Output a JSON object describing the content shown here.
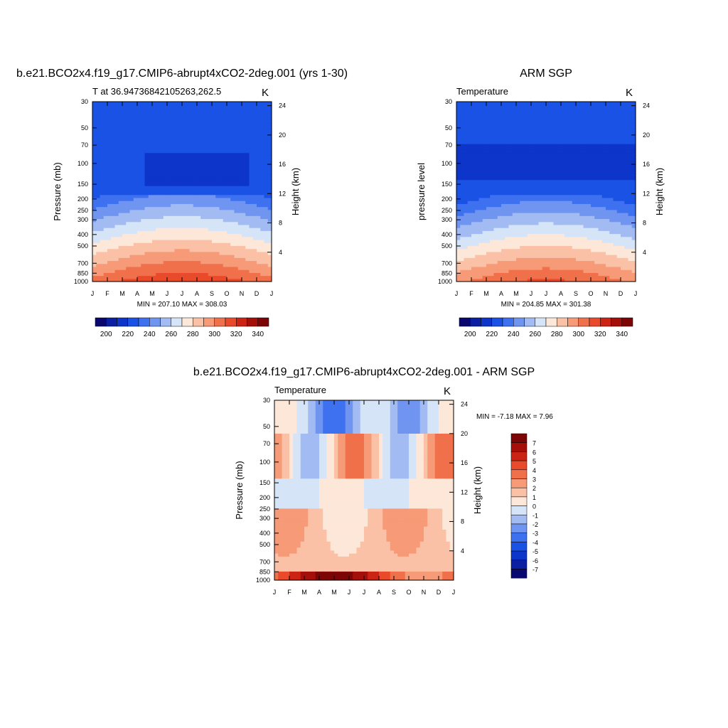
{
  "page": {
    "panel1_title": "b.e21.BCO2x4.f19_g17.CMIP6-abrupt4xCO2-2deg.001 (yrs 1-30)",
    "panel2_title": "ARM SGP",
    "panel3_title": "b.e21.BCO2x4.f19_g17.CMIP6-abrupt4xCO2-2deg.001 - ARM SGP"
  },
  "chart_data": [
    {
      "type": "heatmap",
      "title": "b.e21.BCO2x4.f19_g17.CMIP6-abrupt4xCO2-2deg.001 (yrs 1-30)",
      "left_string": "T at 36.94736842105263,262.5",
      "right_string": "K",
      "xlabel": "",
      "ylabel": "Pressure (mb)",
      "ylabel_right": "Height (km)",
      "x_ticklabels": [
        "J",
        "F",
        "M",
        "A",
        "M",
        "J",
        "J",
        "A",
        "S",
        "O",
        "N",
        "D",
        "J"
      ],
      "y_levels": [
        1000,
        850,
        700,
        500,
        400,
        300,
        250,
        200,
        150,
        100,
        70,
        50,
        30
      ],
      "height_ticks_km": [
        4,
        8,
        12,
        16,
        20,
        24
      ],
      "stats": "MIN = 207.10 MAX = 308.03",
      "colorbar": {
        "orientation": "horizontal",
        "labels": [
          "200",
          "220",
          "240",
          "260",
          "280",
          "300",
          "320",
          "340"
        ]
      },
      "min": 207.1,
      "max": 308.03
    },
    {
      "type": "heatmap",
      "title": "ARM SGP",
      "left_string": "Temperature",
      "right_string": "K",
      "xlabel": "",
      "ylabel": "pressure level",
      "ylabel_right": "Height (km)",
      "x_ticklabels": [
        "J",
        "F",
        "M",
        "A",
        "M",
        "J",
        "J",
        "A",
        "S",
        "O",
        "N",
        "D",
        "J"
      ],
      "y_levels": [
        1000,
        850,
        700,
        500,
        400,
        300,
        250,
        200,
        150,
        100,
        70,
        50,
        30
      ],
      "height_ticks_km": [
        4,
        8,
        12,
        16,
        20,
        24
      ],
      "stats": "MIN = 204.85 MAX = 301.38",
      "colorbar": {
        "orientation": "horizontal",
        "labels": [
          "200",
          "220",
          "240",
          "260",
          "280",
          "300",
          "320",
          "340"
        ]
      },
      "min": 204.85,
      "max": 301.38
    },
    {
      "type": "heatmap",
      "title": "b.e21.BCO2x4.f19_g17.CMIP6-abrupt4xCO2-2deg.001 - ARM SGP",
      "left_string": "Temperature",
      "right_string": "K",
      "xlabel": "",
      "ylabel": "Pressure (mb)",
      "ylabel_right": "Height (km)",
      "x_ticklabels": [
        "J",
        "F",
        "M",
        "A",
        "M",
        "J",
        "J",
        "A",
        "S",
        "O",
        "N",
        "D",
        "J"
      ],
      "y_levels": [
        1000,
        850,
        700,
        500,
        400,
        300,
        250,
        200,
        150,
        100,
        70,
        50,
        30
      ],
      "height_ticks_km": [
        4,
        8,
        12,
        16,
        20,
        24
      ],
      "stats": "MIN =  -7.18 MAX =   7.96",
      "colorbar": {
        "orientation": "vertical",
        "labels": [
          "7",
          "6",
          "5",
          "4",
          "3",
          "2",
          "1",
          "0",
          "-1",
          "-2",
          "-3",
          "-4",
          "-5",
          "-6",
          "-7"
        ]
      },
      "min": -7.18,
      "max": 7.96
    }
  ]
}
